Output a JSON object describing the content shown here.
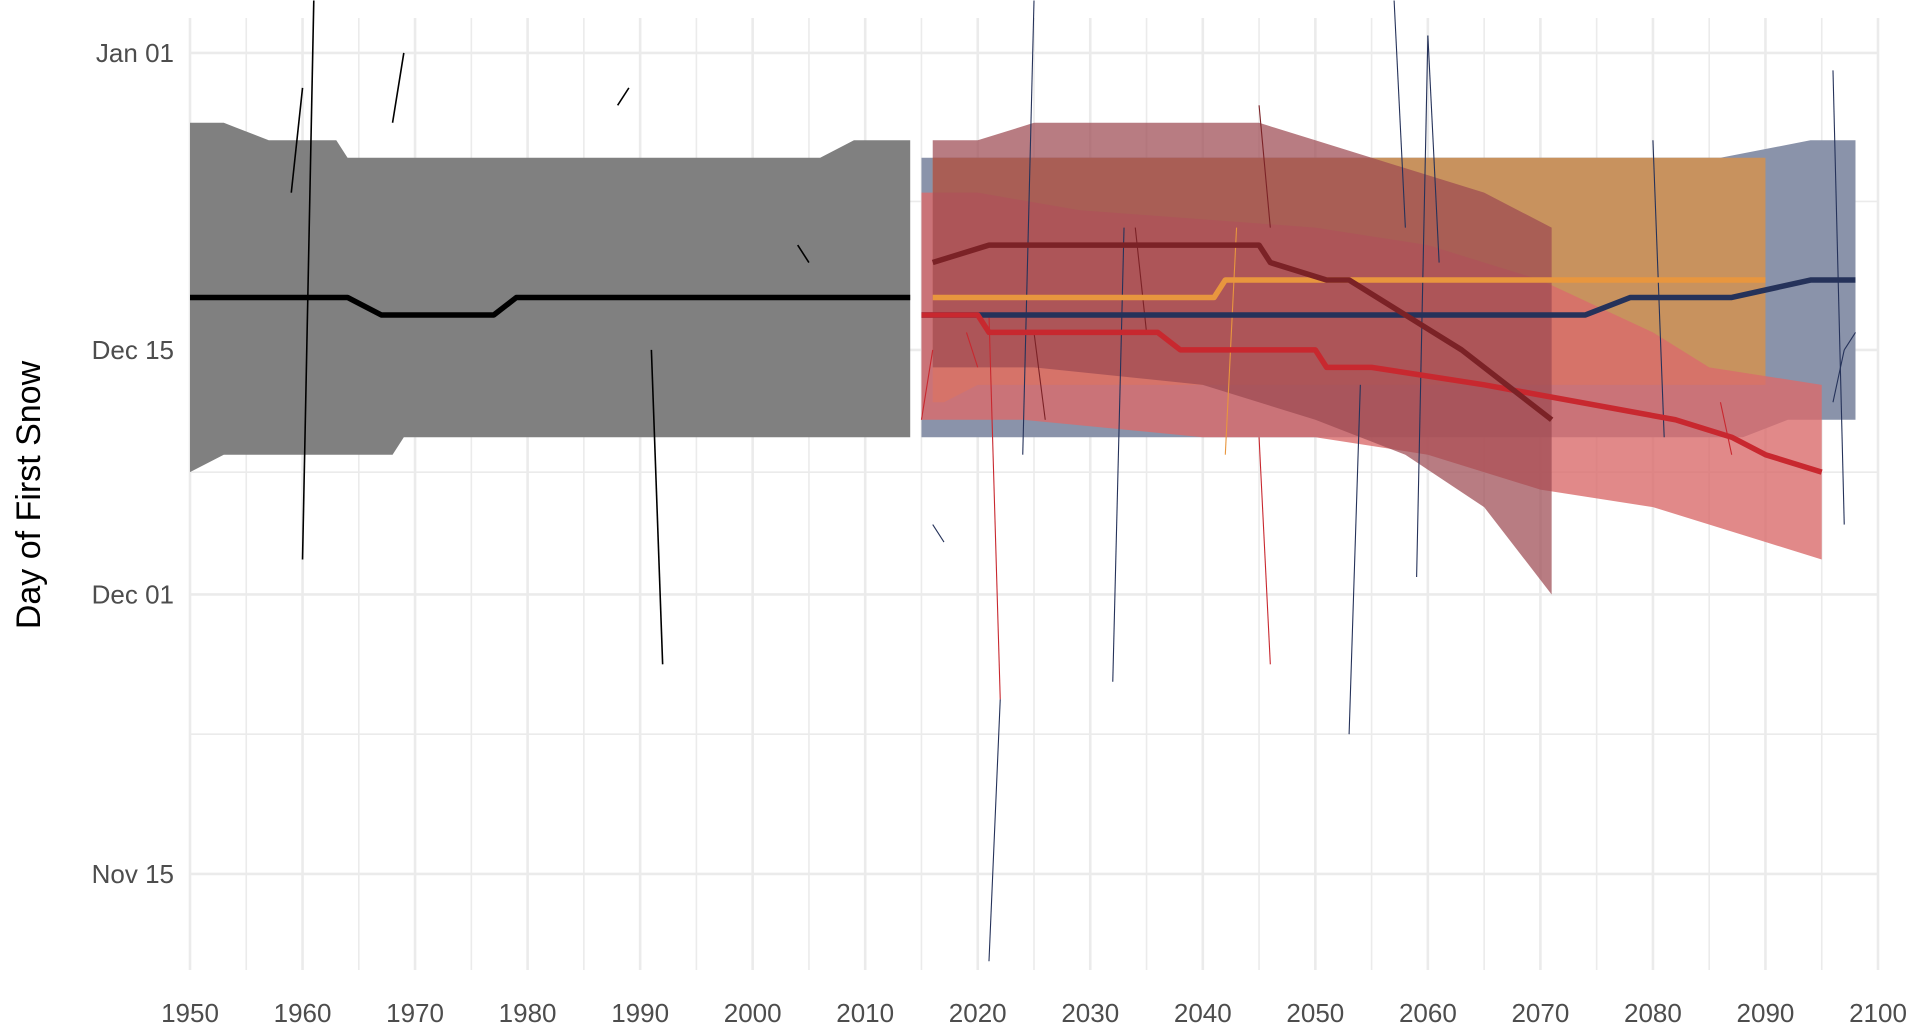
{
  "chart_data": {
    "type": "line",
    "title": "",
    "xlabel": "",
    "ylabel": "Day of First Snow",
    "x_ticks": [
      "1950",
      "1960",
      "1970",
      "1980",
      "1990",
      "2000",
      "2010",
      "2020",
      "2030",
      "2040",
      "2050",
      "2060",
      "2070",
      "2080",
      "2090",
      "2100"
    ],
    "y_ticks": [
      {
        "label": "Jan 01",
        "value": 366
      },
      {
        "label": "Dec 15",
        "value": 349
      },
      {
        "label": "Dec 01",
        "value": 335
      },
      {
        "label": "Nov 15",
        "value": 319
      }
    ],
    "xlim": [
      1950,
      2100
    ],
    "ylim": [
      313.5,
      368
    ],
    "grid": true,
    "legend": "none",
    "colors": {
      "historical": "#000000",
      "historical_band": "#808080",
      "navy": "#25325a",
      "navy_band": "#8a93aa",
      "orange": "#e8963e",
      "orange_band": "#c8925e",
      "red": "#c8282f",
      "red_band": "#d96b6b",
      "darkred": "#7b2226",
      "darkred_band": "#9c4a52",
      "grid": "#ebebeb"
    },
    "series": [
      {
        "key": "historical",
        "line": [
          [
            1950,
            352
          ],
          [
            1964,
            352
          ],
          [
            1967,
            351
          ],
          [
            1977,
            351
          ],
          [
            1979,
            352
          ],
          [
            2014,
            352
          ]
        ],
        "band_upper": [
          [
            1950,
            362
          ],
          [
            1953,
            362
          ],
          [
            1957,
            361
          ],
          [
            1963,
            361
          ],
          [
            1964,
            360
          ],
          [
            2006,
            360
          ],
          [
            2009,
            361
          ],
          [
            2014,
            361
          ]
        ],
        "band_lower": [
          [
            1950,
            342
          ],
          [
            1953,
            343
          ],
          [
            1968,
            343
          ],
          [
            1969,
            344
          ],
          [
            2014,
            344
          ]
        ],
        "spikes": [
          [
            [
              1959,
              358
            ],
            [
              1960,
              364
            ]
          ],
          [
            [
              1960,
              337
            ],
            [
              1961,
              369
            ]
          ],
          [
            [
              1968,
              362
            ],
            [
              1969,
              366
            ]
          ],
          [
            [
              1988,
              363
            ],
            [
              1989,
              364
            ]
          ],
          [
            [
              2004,
              355
            ],
            [
              2005,
              354
            ]
          ],
          [
            [
              1991,
              349
            ],
            [
              1992,
              331
            ]
          ]
        ]
      },
      {
        "key": "navy",
        "line": [
          [
            2015,
            351
          ],
          [
            2074,
            351
          ],
          [
            2078,
            352
          ],
          [
            2087,
            352
          ],
          [
            2094,
            353
          ],
          [
            2098,
            353
          ]
        ],
        "band_upper": [
          [
            2015,
            360
          ],
          [
            2080,
            360
          ],
          [
            2086,
            360
          ],
          [
            2094,
            361
          ],
          [
            2098,
            361
          ]
        ],
        "band_lower": [
          [
            2015,
            344
          ],
          [
            2088,
            344
          ],
          [
            2092,
            345
          ],
          [
            2098,
            345
          ]
        ],
        "spikes": [
          [
            [
              2016,
              339
            ],
            [
              2017,
              338
            ]
          ],
          [
            [
              2021,
              314
            ],
            [
              2022,
              329
            ]
          ],
          [
            [
              2024,
              343
            ],
            [
              2025,
              369
            ]
          ],
          [
            [
              2032,
              330
            ],
            [
              2033,
              356
            ]
          ],
          [
            [
              2053,
              327
            ],
            [
              2054,
              347
            ]
          ],
          [
            [
              2057,
              369
            ],
            [
              2058,
              356
            ]
          ],
          [
            [
              2059,
              336
            ],
            [
              2060,
              367
            ]
          ],
          [
            [
              2060,
              367
            ],
            [
              2061,
              354
            ]
          ],
          [
            [
              2080,
              361
            ],
            [
              2081,
              344
            ]
          ],
          [
            [
              2096,
              365
            ],
            [
              2097,
              339
            ]
          ],
          [
            [
              2096,
              346
            ],
            [
              2097,
              349
            ]
          ],
          [
            [
              2097,
              349
            ],
            [
              2098,
              350
            ]
          ]
        ]
      },
      {
        "key": "orange",
        "line": [
          [
            2016,
            352
          ],
          [
            2041,
            352
          ],
          [
            2042,
            353
          ],
          [
            2090,
            353
          ]
        ],
        "band_upper": [
          [
            2016,
            360
          ],
          [
            2090,
            360
          ]
        ],
        "band_lower": [
          [
            2016,
            346
          ],
          [
            2017,
            346
          ],
          [
            2020,
            347
          ],
          [
            2080,
            347
          ],
          [
            2090,
            347
          ]
        ],
        "spikes": [
          [
            [
              2042,
              343
            ],
            [
              2043,
              356
            ]
          ]
        ]
      },
      {
        "key": "red",
        "line": [
          [
            2015,
            351
          ],
          [
            2020,
            351
          ],
          [
            2021,
            350
          ],
          [
            2036,
            350
          ],
          [
            2038,
            349
          ],
          [
            2050,
            349
          ],
          [
            2051,
            348
          ],
          [
            2055,
            348
          ],
          [
            2065,
            347
          ],
          [
            2082,
            345
          ],
          [
            2087,
            344
          ],
          [
            2090,
            343
          ],
          [
            2095,
            342
          ]
        ],
        "band_upper": [
          [
            2015,
            358
          ],
          [
            2020,
            358
          ],
          [
            2029,
            357
          ],
          [
            2050,
            356
          ],
          [
            2060,
            355
          ],
          [
            2070,
            353
          ],
          [
            2080,
            350
          ],
          [
            2085,
            348
          ],
          [
            2095,
            347
          ]
        ],
        "band_lower": [
          [
            2015,
            345
          ],
          [
            2024,
            345
          ],
          [
            2040,
            344
          ],
          [
            2050,
            344
          ],
          [
            2060,
            343
          ],
          [
            2070,
            341
          ],
          [
            2080,
            340
          ],
          [
            2090,
            338
          ],
          [
            2095,
            337
          ]
        ],
        "spikes": [
          [
            [
              2015,
              345
            ],
            [
              2016,
              349
            ]
          ],
          [
            [
              2019,
              350
            ],
            [
              2020,
              348
            ]
          ],
          [
            [
              2021,
              351
            ],
            [
              2022,
              329
            ]
          ],
          [
            [
              2045,
              344
            ],
            [
              2046,
              331
            ]
          ],
          [
            [
              2086,
              346
            ],
            [
              2087,
              343
            ]
          ]
        ]
      },
      {
        "key": "darkred",
        "line": [
          [
            2016,
            354
          ],
          [
            2021,
            355
          ],
          [
            2045,
            355
          ],
          [
            2046,
            354
          ],
          [
            2051,
            353
          ],
          [
            2053,
            353
          ],
          [
            2058,
            351
          ],
          [
            2063,
            349
          ],
          [
            2071,
            345
          ]
        ],
        "band_upper": [
          [
            2016,
            361
          ],
          [
            2020,
            361
          ],
          [
            2025,
            362
          ],
          [
            2045,
            362
          ],
          [
            2050,
            361
          ],
          [
            2055,
            360
          ],
          [
            2065,
            358
          ],
          [
            2071,
            356
          ]
        ],
        "band_lower": [
          [
            2016,
            348
          ],
          [
            2025,
            348
          ],
          [
            2040,
            347
          ],
          [
            2050,
            345
          ],
          [
            2058,
            343
          ],
          [
            2065,
            340
          ],
          [
            2071,
            335
          ]
        ],
        "spikes": [
          [
            [
              2045,
              363
            ],
            [
              2046,
              356
            ]
          ],
          [
            [
              2025,
              350
            ],
            [
              2026,
              345
            ]
          ],
          [
            [
              2034,
              356
            ],
            [
              2035,
              350
            ]
          ]
        ]
      }
    ]
  }
}
